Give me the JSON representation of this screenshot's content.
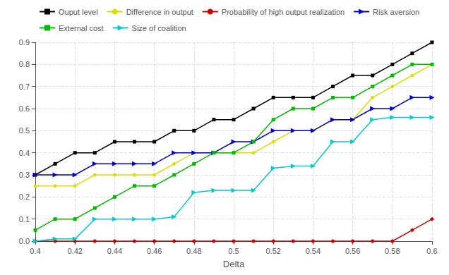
{
  "chart_data": {
    "type": "line",
    "x": [
      0.4,
      0.41,
      0.42,
      0.43,
      0.44,
      0.45,
      0.46,
      0.47,
      0.48,
      0.49,
      0.5,
      0.51,
      0.52,
      0.53,
      0.54,
      0.55,
      0.56,
      0.57,
      0.58,
      0.59,
      0.6
    ],
    "series": [
      {
        "name": "Ouput level",
        "color": "#000000",
        "marker": "square",
        "values": [
          0.3,
          0.35,
          0.4,
          0.4,
          0.45,
          0.45,
          0.45,
          0.5,
          0.5,
          0.55,
          0.55,
          0.6,
          0.65,
          0.65,
          0.65,
          0.7,
          0.75,
          0.75,
          0.8,
          0.85,
          0.9
        ]
      },
      {
        "name": "Difference in output",
        "color": "#dddd00",
        "marker": "circle",
        "values": [
          0.25,
          0.25,
          0.25,
          0.3,
          0.3,
          0.3,
          0.3,
          0.35,
          0.4,
          0.4,
          0.4,
          0.4,
          0.45,
          0.5,
          0.5,
          0.55,
          0.55,
          0.65,
          0.7,
          0.75,
          0.8
        ]
      },
      {
        "name": "Probability of high output realization",
        "color": "#cc0000",
        "marker": "circle",
        "values": [
          0.0,
          0.0,
          0.0,
          0.0,
          0.0,
          0.0,
          0.0,
          0.0,
          0.0,
          0.0,
          0.0,
          0.0,
          0.0,
          0.0,
          0.0,
          0.0,
          0.0,
          0.0,
          0.0,
          0.05,
          0.1
        ]
      },
      {
        "name": "Risk aversion",
        "color": "#0000cc",
        "marker": "triangle-right",
        "values": [
          0.3,
          0.3,
          0.3,
          0.35,
          0.35,
          0.35,
          0.35,
          0.4,
          0.4,
          0.4,
          0.45,
          0.45,
          0.5,
          0.5,
          0.5,
          0.55,
          0.55,
          0.6,
          0.6,
          0.65,
          0.65
        ]
      },
      {
        "name": "External cost",
        "color": "#00bb00",
        "marker": "square",
        "values": [
          0.05,
          0.1,
          0.1,
          0.15,
          0.2,
          0.25,
          0.25,
          0.3,
          0.35,
          0.4,
          0.4,
          0.45,
          0.55,
          0.6,
          0.6,
          0.65,
          0.65,
          0.7,
          0.75,
          0.8,
          0.8
        ]
      },
      {
        "name": "Size of coalition",
        "color": "#00cccc",
        "marker": "triangle-right",
        "values": [
          0.0,
          0.01,
          0.01,
          0.1,
          0.1,
          0.1,
          0.1,
          0.11,
          0.22,
          0.23,
          0.23,
          0.23,
          0.33,
          0.34,
          0.34,
          0.45,
          0.45,
          0.55,
          0.56,
          0.56,
          0.56
        ]
      }
    ],
    "xlabel": "Delta",
    "xlim": [
      0.4,
      0.6
    ],
    "ylim": [
      0.0,
      0.9
    ],
    "xticks": [
      0.4,
      0.42,
      0.44,
      0.46,
      0.48,
      0.5,
      0.52,
      0.54,
      0.56,
      0.58,
      0.6
    ],
    "yticks": [
      {
        "value": 0.0,
        "label": "0.0"
      },
      0.1,
      0.2,
      0.3,
      0.4,
      0.5,
      0.6,
      0.7,
      0.8,
      0.9
    ],
    "grid": true,
    "legend": "upper left"
  }
}
